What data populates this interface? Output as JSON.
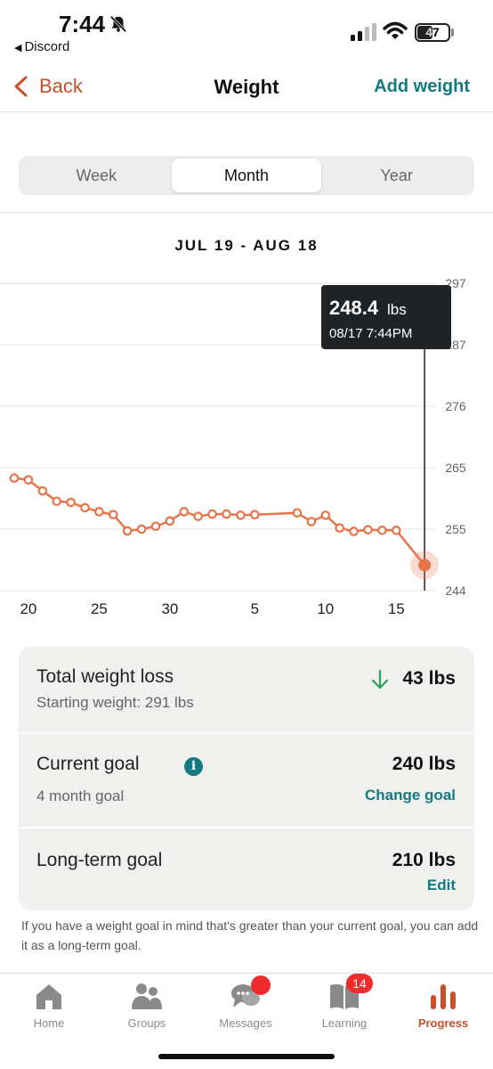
{
  "status_bar": {
    "time": "7:44",
    "back_app": "Discord",
    "battery": "47"
  },
  "nav": {
    "back_label": "Back",
    "title": "Weight",
    "action_label": "Add weight"
  },
  "segments": {
    "options": [
      "Week",
      "Month",
      "Year"
    ],
    "selected": "Month"
  },
  "date_range": "JUL 19 - AUG 18",
  "tooltip": {
    "value": "248.4",
    "unit": "lbs",
    "timestamp": "08/17 7:44PM"
  },
  "chart_data": {
    "type": "line",
    "x_tick_labels": [
      "20",
      "25",
      "30",
      "5",
      "10",
      "15"
    ],
    "y_tick_labels": [
      "297",
      "287",
      "276",
      "265",
      "255",
      "244"
    ],
    "ylim": [
      244,
      297
    ],
    "grid": true,
    "line_color": "#e8744a",
    "points": [
      {
        "x": 0,
        "y": 263.4
      },
      {
        "x": 1,
        "y": 263.1
      },
      {
        "x": 2,
        "y": 261.2
      },
      {
        "x": 3,
        "y": 259.4
      },
      {
        "x": 4,
        "y": 259.2
      },
      {
        "x": 5,
        "y": 258.3
      },
      {
        "x": 6,
        "y": 257.6
      },
      {
        "x": 7,
        "y": 257.1
      },
      {
        "x": 8,
        "y": 254.3
      },
      {
        "x": 9,
        "y": 254.6
      },
      {
        "x": 10,
        "y": 255.1
      },
      {
        "x": 11,
        "y": 256.0
      },
      {
        "x": 12,
        "y": 257.6
      },
      {
        "x": 13,
        "y": 256.8
      },
      {
        "x": 14,
        "y": 257.2
      },
      {
        "x": 15,
        "y": 257.2
      },
      {
        "x": 16,
        "y": 257.0
      },
      {
        "x": 17,
        "y": 257.1
      },
      {
        "x": 20,
        "y": 257.4
      },
      {
        "x": 21,
        "y": 255.9
      },
      {
        "x": 22,
        "y": 257.0
      },
      {
        "x": 23,
        "y": 254.8
      },
      {
        "x": 24,
        "y": 254.2
      },
      {
        "x": 25,
        "y": 254.5
      },
      {
        "x": 26,
        "y": 254.4
      },
      {
        "x": 27,
        "y": 254.4
      },
      {
        "x": 29,
        "y": 248.4
      }
    ],
    "selected_index": 26
  },
  "summary": {
    "total_loss_label": "Total weight loss",
    "starting_weight": "Starting weight: 291 lbs",
    "total_loss_value": "43 lbs",
    "current_goal_label": "Current goal",
    "current_goal_sub": "4 month goal",
    "current_goal_value": "240 lbs",
    "change_goal_link": "Change goal",
    "long_term_label": "Long-term goal",
    "long_term_value": "210 lbs",
    "edit_link": "Edit"
  },
  "note": "If you have a weight goal in mind that's greater than your current goal, you can add it as a long-term goal.",
  "tabs": {
    "home": "Home",
    "groups": "Groups",
    "messages": "Messages",
    "learning": "Learning",
    "learning_badge": "14",
    "progress": "Progress"
  },
  "colors": {
    "accent_orange": "#c8502a",
    "accent_teal": "#147a82",
    "badge_red": "#ef2b2b",
    "down_green": "#2aa05a"
  }
}
